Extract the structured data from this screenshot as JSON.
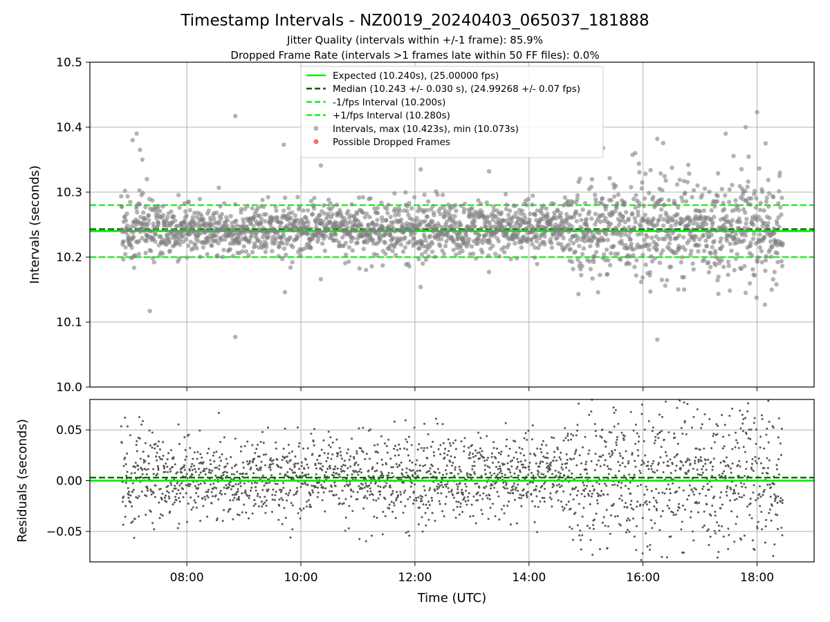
{
  "chart_data": {
    "type": "scatter",
    "title": "Timestamp Intervals - NZ0019_20240403_065037_181888",
    "subtitle_lines": [
      "Jitter Quality (intervals within +/-1 frame): 85.9%",
      "Dropped Frame Rate (intervals >1 frames late within 50 FF files): 0.0%"
    ],
    "x_axis": {
      "label": "Time (UTC)",
      "unit": "hours",
      "range": [
        6.3,
        19.0
      ],
      "ticks": [
        8,
        10,
        12,
        14,
        16,
        18
      ],
      "tick_labels": [
        "08:00",
        "10:00",
        "12:00",
        "14:00",
        "16:00",
        "18:00"
      ]
    },
    "panels": [
      {
        "id": "intervals",
        "ylabel": "Intervals (seconds)",
        "ylim": [
          10.0,
          10.5
        ],
        "yticks": [
          10.0,
          10.1,
          10.2,
          10.3,
          10.4,
          10.5
        ],
        "ytick_labels": [
          "10.0",
          "10.1",
          "10.2",
          "10.3",
          "10.4",
          "10.5"
        ],
        "grid": true,
        "legend_position": "upper-center",
        "lines": [
          {
            "name": "Expected (10.240s), (25.00000 fps)",
            "y": 10.24,
            "color": "#00ee00",
            "style": "solid"
          },
          {
            "name": "Median (10.243 +/- 0.030 s), (24.99268 +/- 0.07 fps)",
            "y": 10.243,
            "color": "#006400",
            "style": "dashed"
          },
          {
            "name": "-1/fps Interval (10.200s)",
            "y": 10.2,
            "color": "#22ee22",
            "style": "dashed"
          },
          {
            "name": "+1/fps Interval (10.280s)",
            "y": 10.28,
            "color": "#22ee22",
            "style": "dashed"
          }
        ],
        "scatter_series": [
          {
            "name": "Intervals, max (10.423s), min (10.073s)",
            "color": "#808080",
            "marker": "circle"
          },
          {
            "name": "Possible Dropped Frames",
            "color": "#ff0000",
            "marker": "circle",
            "count": 0
          }
        ],
        "center": 10.243,
        "max": 10.423,
        "min": 10.073,
        "outliers": [
          [
            7.05,
            10.38
          ],
          [
            7.12,
            10.39
          ],
          [
            7.18,
            10.365
          ],
          [
            7.22,
            10.35
          ],
          [
            7.3,
            10.32
          ],
          [
            7.35,
            10.117
          ],
          [
            8.85,
            10.417
          ],
          [
            8.85,
            10.077
          ],
          [
            9.7,
            10.373
          ],
          [
            9.72,
            10.146
          ],
          [
            10.35,
            10.341
          ],
          [
            10.35,
            10.166
          ],
          [
            12.1,
            10.335
          ],
          [
            12.1,
            10.154
          ],
          [
            13.3,
            10.332
          ],
          [
            13.3,
            10.177
          ],
          [
            15.3,
            10.368
          ],
          [
            16.25,
            10.382
          ],
          [
            16.25,
            10.073
          ],
          [
            17.45,
            10.39
          ],
          [
            17.8,
            10.4
          ],
          [
            18.0,
            10.423
          ],
          [
            18.15,
            10.375
          ],
          [
            17.8,
            10.145
          ]
        ]
      },
      {
        "id": "residuals",
        "ylabel": "Residuals (seconds)",
        "ylim": [
          -0.08,
          0.08
        ],
        "yticks": [
          -0.05,
          0.0,
          0.05
        ],
        "ytick_labels": [
          "−0.05",
          "0.00",
          "0.05"
        ],
        "grid": true,
        "lines": [
          {
            "name": "expected-zero",
            "y": 0.0,
            "color": "#00ee00",
            "style": "solid"
          },
          {
            "name": "median-offset",
            "y": 0.003,
            "color": "#006400",
            "style": "dashed"
          }
        ],
        "scatter_series": [
          {
            "name": "residuals",
            "color": "#555555",
            "marker": "circle"
          }
        ]
      }
    ],
    "data_time_span": [
      6.85,
      18.45
    ]
  }
}
